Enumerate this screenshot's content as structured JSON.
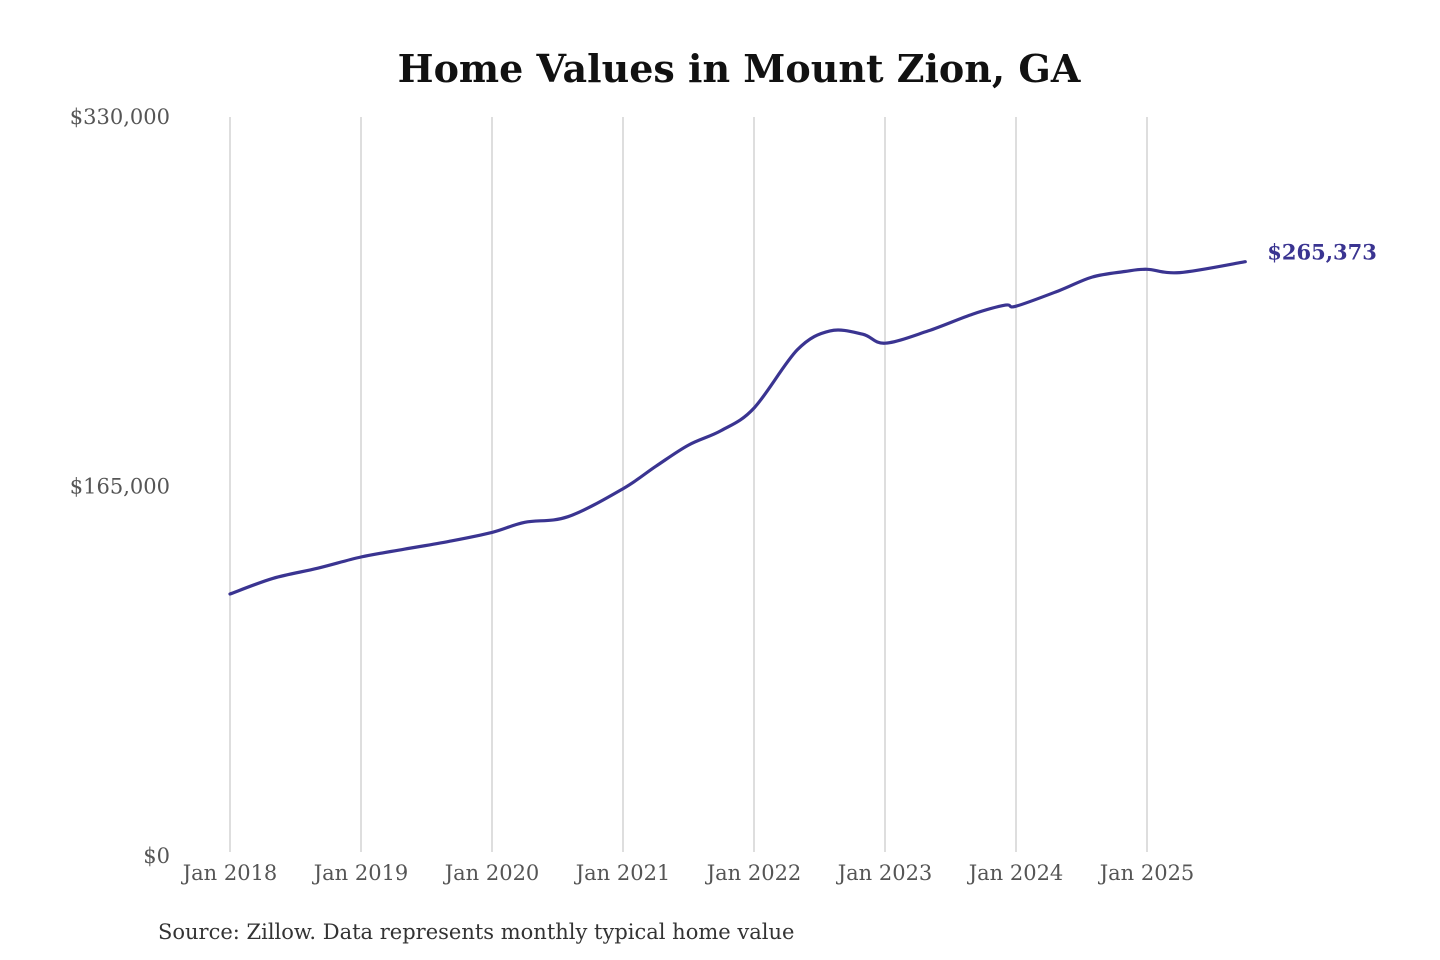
{
  "chart_data": {
    "type": "line",
    "title": "Home Values in Mount Zion, GA",
    "xlabel": "",
    "ylabel": "",
    "source_note": "Source: Zillow. Data represents monthly typical home value",
    "ylim": [
      0,
      330000
    ],
    "y_ticks": [
      {
        "value": 0,
        "label": "$0"
      },
      {
        "value": 165000,
        "label": "$165,000"
      },
      {
        "value": 330000,
        "label": "$330,000"
      }
    ],
    "x_ticks": [
      {
        "value": 2018.0,
        "label": "Jan 2018"
      },
      {
        "value": 2019.0,
        "label": "Jan 2019"
      },
      {
        "value": 2020.0,
        "label": "Jan 2020"
      },
      {
        "value": 2021.0,
        "label": "Jan 2021"
      },
      {
        "value": 2022.0,
        "label": "Jan 2022"
      },
      {
        "value": 2023.0,
        "label": "Jan 2023"
      },
      {
        "value": 2024.0,
        "label": "Jan 2024"
      },
      {
        "value": 2025.0,
        "label": "Jan 2025"
      }
    ],
    "grid": {
      "vertical": true,
      "horizontal": false
    },
    "colors": {
      "line": "#3a3491",
      "grid": "#c8c8c8"
    },
    "end_label": "$265,373",
    "series": [
      {
        "x": [
          2018.0,
          2018.33,
          2018.67,
          2019.0,
          2019.33,
          2019.67,
          2020.0,
          2020.25,
          2020.58,
          2021.0,
          2021.25,
          2021.5,
          2021.75,
          2022.0,
          2022.33,
          2022.58,
          2022.83,
          2023.0,
          2023.33,
          2023.67,
          2023.92,
          2024.0,
          2024.33,
          2024.58,
          2024.83,
          2025.0,
          2025.25,
          2025.75
        ],
        "y": [
          117000,
          124000,
          128500,
          133500,
          137000,
          140500,
          144500,
          149000,
          151500,
          164000,
          174000,
          183500,
          190000,
          200000,
          226000,
          234500,
          233000,
          229000,
          234500,
          242000,
          246000,
          245500,
          252500,
          258500,
          261000,
          262000,
          260500,
          265373
        ]
      }
    ]
  }
}
